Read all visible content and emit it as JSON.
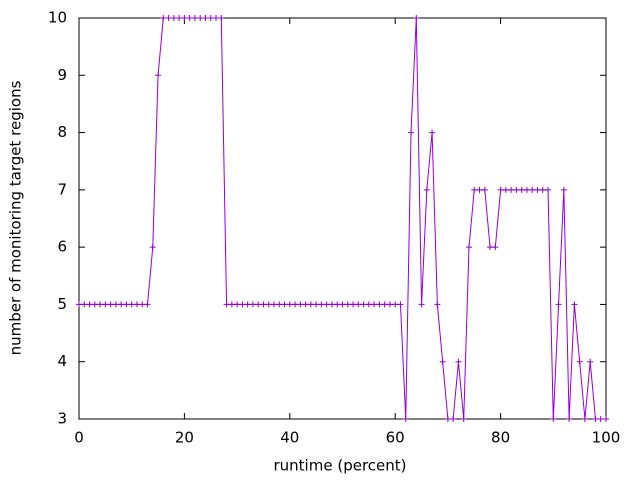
{
  "chart_data": {
    "type": "line",
    "x_label": "runtime (percent)",
    "y_label": "number of monitoring target regions",
    "x": [
      0,
      1,
      2,
      3,
      4,
      5,
      6,
      7,
      8,
      9,
      10,
      11,
      12,
      13,
      14,
      15,
      16,
      17,
      18,
      19,
      20,
      21,
      22,
      23,
      24,
      25,
      26,
      27,
      28,
      29,
      30,
      31,
      32,
      33,
      34,
      35,
      36,
      37,
      38,
      39,
      40,
      41,
      42,
      43,
      44,
      45,
      46,
      47,
      48,
      49,
      50,
      51,
      52,
      53,
      54,
      55,
      56,
      57,
      58,
      59,
      60,
      61,
      62,
      63,
      64,
      65,
      66,
      67,
      68,
      69,
      70,
      71,
      72,
      73,
      74,
      75,
      76,
      77,
      78,
      79,
      80,
      81,
      82,
      83,
      84,
      85,
      86,
      87,
      88,
      89,
      90,
      91,
      92,
      93,
      94,
      95,
      96,
      97,
      98,
      99,
      100
    ],
    "series": [
      {
        "color": "#9400d3",
        "values": [
          5,
          5,
          5,
          5,
          5,
          5,
          5,
          5,
          5,
          5,
          5,
          5,
          5,
          5,
          6,
          9,
          10,
          10,
          10,
          10,
          10,
          10,
          10,
          10,
          10,
          10,
          10,
          10,
          5,
          5,
          5,
          5,
          5,
          5,
          5,
          5,
          5,
          5,
          5,
          5,
          5,
          5,
          5,
          5,
          5,
          5,
          5,
          5,
          5,
          5,
          5,
          5,
          5,
          5,
          5,
          5,
          5,
          5,
          5,
          5,
          5,
          5,
          3,
          8,
          10,
          5,
          7,
          8,
          5,
          4,
          3,
          3,
          4,
          3,
          6,
          7,
          7,
          7,
          6,
          6,
          7,
          7,
          7,
          7,
          7,
          7,
          7,
          7,
          7,
          7,
          3,
          5,
          7,
          3,
          5,
          4,
          3,
          4,
          3,
          3,
          3
        ]
      }
    ],
    "xlim": [
      0,
      100
    ],
    "xticks": [
      0,
      20,
      40,
      60,
      80,
      100
    ],
    "ylim": [
      3,
      10
    ],
    "yticks": [
      3,
      4,
      5,
      6,
      7,
      8,
      9,
      10
    ],
    "marker": "+"
  }
}
